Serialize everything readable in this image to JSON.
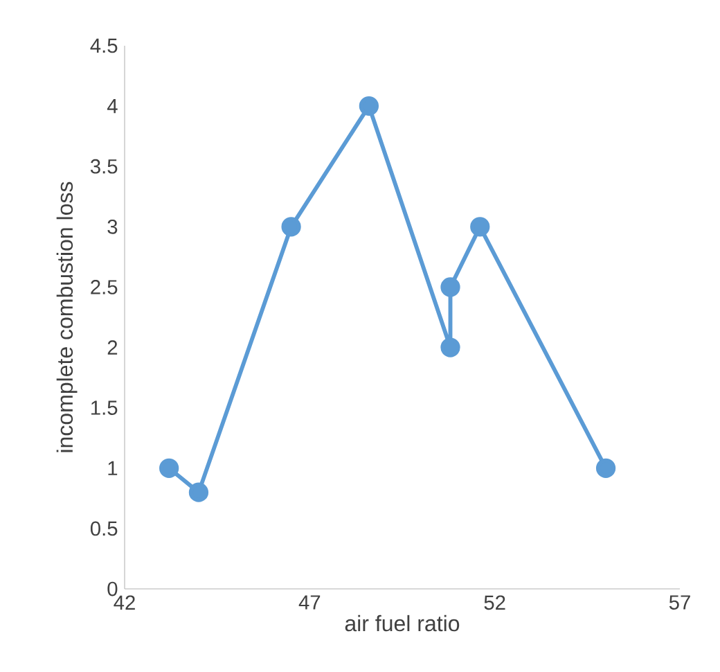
{
  "chart_data": {
    "type": "line",
    "xlabel": "air fuel ratio",
    "ylabel": "incomplete combustion loss",
    "x": [
      43.2,
      44.0,
      46.5,
      48.6,
      50.8,
      50.8,
      51.6,
      55.0
    ],
    "series": [
      {
        "color": "#5b9bd5",
        "values": [
          1.0,
          0.8,
          3.0,
          4.0,
          2.0,
          2.5,
          3.0,
          1.0
        ]
      }
    ],
    "xlim": [
      42,
      57
    ],
    "xticks": [
      42,
      47,
      52,
      57
    ],
    "ylim": [
      0,
      4.5
    ],
    "yticks": [
      0,
      0.5,
      1,
      1.5,
      2,
      2.5,
      3,
      3.5,
      4,
      4.5
    ],
    "marker": "circle",
    "line_style": "solid"
  }
}
